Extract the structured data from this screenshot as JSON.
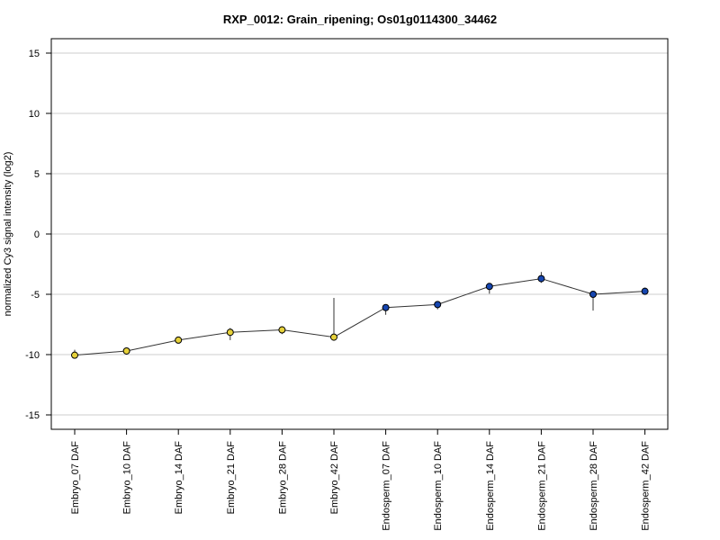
{
  "chart_data": {
    "type": "line",
    "title": "RXP_0012: Grain_ripening; Os01g0114300_34462",
    "xlabel": "",
    "ylabel": "normalized Cy3 signal intensity (log2)",
    "ylim": [
      -16.2,
      16.2
    ],
    "yticks": [
      15,
      10,
      5,
      0,
      -5,
      -10,
      -15
    ],
    "grid": true,
    "categories": [
      "Embryo_07 DAF",
      "Embryo_10 DAF",
      "Embryo_14 DAF",
      "Embryo_21 DAF",
      "Embryo_28 DAF",
      "Embryo_42 DAF",
      "Endosperm_07 DAF",
      "Endosperm_10 DAF",
      "Endosperm_14 DAF",
      "Endosperm_21 DAF",
      "Endosperm_28 DAF",
      "Endosperm_42 DAF"
    ],
    "values": [
      -10.05,
      -9.7,
      -8.8,
      -8.15,
      -7.95,
      -8.55,
      -6.1,
      -5.85,
      -4.35,
      -3.7,
      -5.0,
      -4.75
    ],
    "error_low": [
      -10.3,
      -9.85,
      -9.0,
      -8.8,
      -8.3,
      -8.55,
      -6.7,
      -6.25,
      -4.95,
      -4.05,
      -6.35,
      -5.0
    ],
    "error_high": [
      -9.6,
      -9.55,
      -8.7,
      -7.8,
      -7.65,
      -5.3,
      -5.85,
      -5.6,
      -4.1,
      -3.15,
      -4.75,
      -4.45
    ],
    "point_colors": [
      "#e6d13a",
      "#e6d13a",
      "#e6d13a",
      "#e6d13a",
      "#e6d13a",
      "#e6d13a",
      "#1646b0",
      "#1646b0",
      "#1646b0",
      "#1646b0",
      "#1646b0",
      "#1646b0"
    ],
    "line_color": "#333333",
    "grid_color": "#cccccc"
  }
}
